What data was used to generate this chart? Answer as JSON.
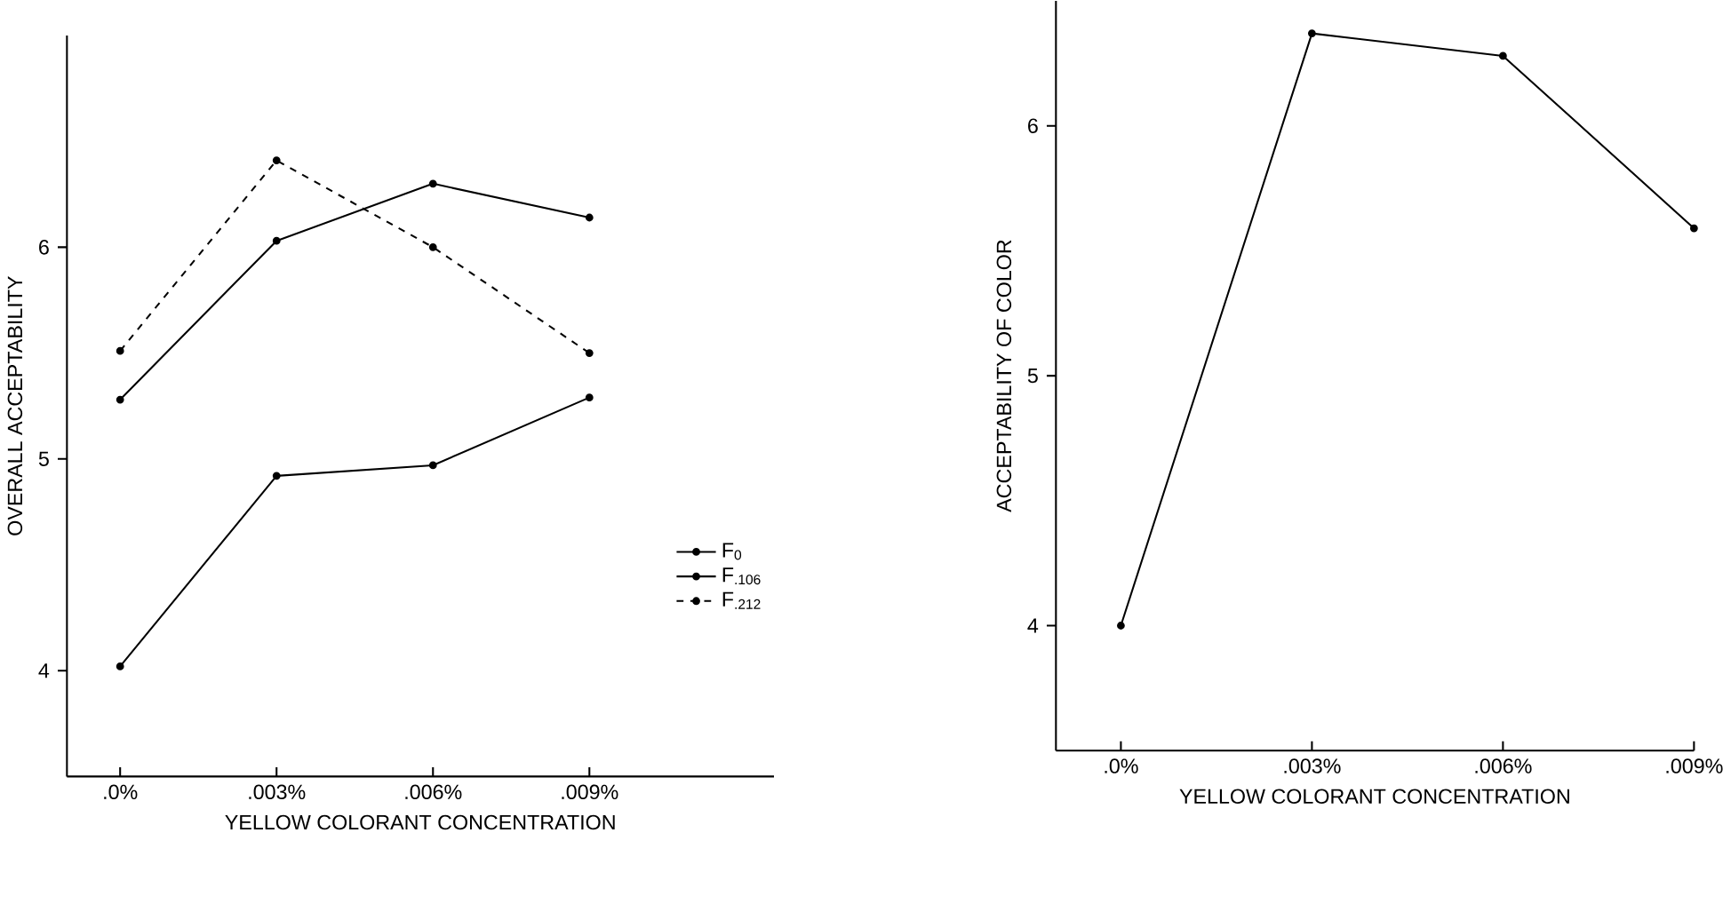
{
  "chart_data": [
    {
      "type": "line",
      "categories": [
        ".0%",
        ".003%",
        ".006%",
        ".009%"
      ],
      "xlabel": "YELLOW COLORANT CONCENTRATION",
      "ylabel": "OVERALL ACCEPTABILITY",
      "ylim": [
        3.5,
        7.0
      ],
      "yticks": [
        4,
        5,
        6
      ],
      "legend": "right",
      "marker": "circle",
      "series": [
        {
          "name": "F$_{0}$",
          "color": "#000000",
          "line_style": "solid",
          "values": [
            4.02,
            4.92,
            4.97,
            5.29
          ]
        },
        {
          "name": "F$_{.106}$",
          "color": "#000000",
          "line_style": "solid",
          "values": [
            5.28,
            6.03,
            6.3,
            6.14
          ]
        },
        {
          "name": "F$_{.212}$",
          "color": "#000000",
          "line_style": "dashed",
          "values": [
            5.51,
            6.41,
            6.0,
            5.5
          ]
        }
      ]
    },
    {
      "type": "line",
      "categories": [
        ".0%",
        ".003%",
        ".006%",
        ".009%"
      ],
      "xlabel": "YELLOW COLORANT CONCENTRATION",
      "ylabel": "ACCEPTABILITY OF COLOR",
      "ylim": [
        3.5,
        6.5
      ],
      "yticks": [
        4,
        5,
        6
      ],
      "marker": "circle",
      "series": [
        {
          "color": "#000000",
          "values": [
            4.0,
            6.37,
            6.28,
            5.59
          ]
        }
      ]
    }
  ]
}
